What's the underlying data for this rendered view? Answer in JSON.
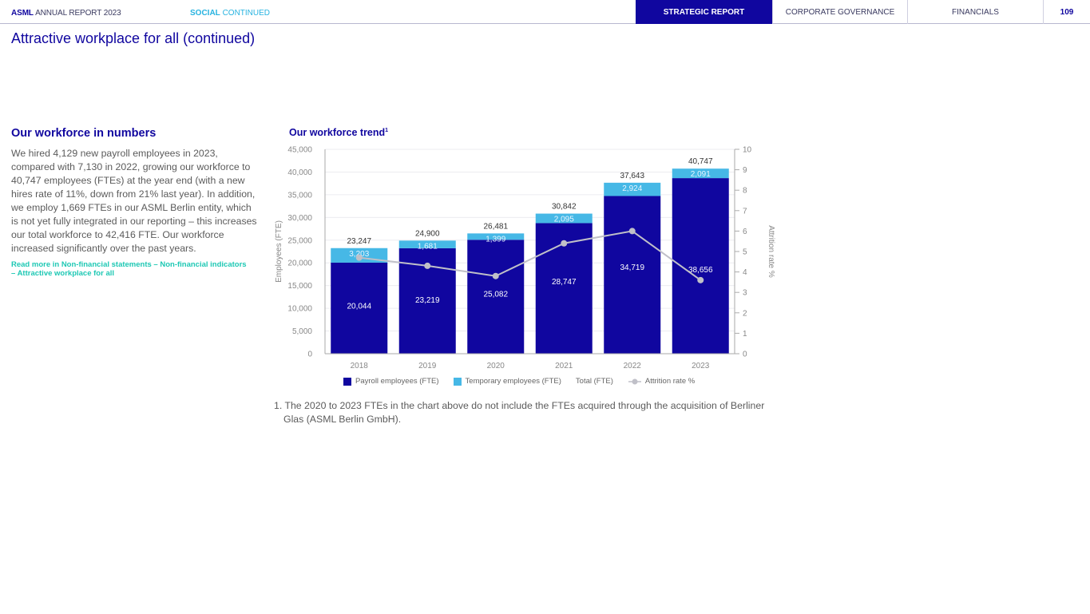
{
  "header": {
    "brand_bold": "ASML",
    "brand_rest": "ANNUAL REPORT 2023",
    "section_bold": "SOCIAL",
    "section_rest": "CONTINUED",
    "nav": [
      {
        "label": "STRATEGIC REPORT",
        "active": true
      },
      {
        "label": "CORPORATE GOVERNANCE",
        "active": false
      },
      {
        "label": "FINANCIALS",
        "active": false
      }
    ],
    "page_number": "109"
  },
  "page_title": "Attractive workplace for all (continued)",
  "left": {
    "heading": "Our workforce in numbers",
    "body": "We hired 4,129 new payroll employees in 2023, compared with 7,130 in 2022, growing our workforce to 40,747 employees (FTEs) at the year end (with a new hires rate of 11%, down from 21% last year). In addition, we employ 1,669 FTEs in our ASML Berlin entity, which is not yet fully integrated in our reporting – this increases our total workforce to 42,416 FTE. Our workforce increased significantly over the past years.",
    "read_more": "Read more in Non-financial statements – Non-financial indicators – Attractive workplace for all"
  },
  "chart_title": "Our workforce trend",
  "chart_title_sup": "1",
  "colors": {
    "payroll": "#10069f",
    "temporary": "#46b8e6",
    "attrition": "#c0c0c8",
    "title": "#10069f",
    "link": "#1ec8b4"
  },
  "chart_data": {
    "type": "bar",
    "stacked": true,
    "title": "Our workforce trend",
    "categories": [
      "2018",
      "2019",
      "2020",
      "2021",
      "2022",
      "2023"
    ],
    "series": [
      {
        "name": "Payroll employees (FTE)",
        "values": [
          20044,
          23219,
          25082,
          28747,
          34719,
          38656
        ]
      },
      {
        "name": "Temporary employees (FTE)",
        "values": [
          3203,
          1681,
          1399,
          2095,
          2924,
          2091
        ]
      }
    ],
    "totals": {
      "name": "Total (FTE)",
      "values": [
        23247,
        24900,
        26481,
        30842,
        37643,
        40747
      ]
    },
    "line_series": {
      "name": "Attrition rate %",
      "axis": "right",
      "values": [
        4.7,
        4.3,
        3.8,
        5.4,
        6.0,
        3.6
      ]
    },
    "ylabel": "Employees (FTE)",
    "y2label": "Attrition rate %",
    "ylim": [
      0,
      45000
    ],
    "yticks": [
      "0",
      "5,000",
      "10,000",
      "15,000",
      "20,000",
      "25,000",
      "30,000",
      "35,000",
      "40,000",
      "45,000"
    ],
    "y2lim": [
      0,
      10
    ],
    "y2ticks": [
      "0",
      "1",
      "2",
      "3",
      "4",
      "5",
      "6",
      "7",
      "8",
      "9",
      "10"
    ],
    "grid": true,
    "legend_position": "bottom",
    "value_labels": {
      "payroll": [
        "20,044",
        "23,219",
        "25,082",
        "28,747",
        "34,719",
        "38,656"
      ],
      "temporary": [
        "3,203",
        "1,681",
        "1,399",
        "2,095",
        "2,924",
        "2,091"
      ],
      "totals": [
        "23,247",
        "24,900",
        "26,481",
        "30,842",
        "37,643",
        "40,747"
      ]
    }
  },
  "legend": [
    {
      "label": "Payroll employees (FTE)",
      "swatch": "payroll"
    },
    {
      "label": "Temporary employees (FTE)",
      "swatch": "temporary"
    },
    {
      "label": "Total (FTE)",
      "swatch": "none"
    },
    {
      "label": "Attrition rate %",
      "swatch": "attrition-marker"
    }
  ],
  "footnote": "1. The 2020 to 2023 FTEs in the chart above do not include the FTEs acquired through the acquisition of Berliner Glas (ASML Berlin GmbH)."
}
